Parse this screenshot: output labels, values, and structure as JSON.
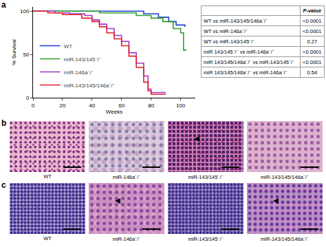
{
  "chart_data": {
    "type": "line",
    "label": "a",
    "xlabel": "Weeks",
    "ylabel": "% Survival",
    "xlim": [
      0,
      110
    ],
    "xticks": [
      0,
      20,
      40,
      60,
      80,
      100
    ],
    "ylim": [
      0,
      105
    ],
    "yticks": [
      0,
      50,
      100
    ],
    "legend": "bottom left",
    "line_style": "step",
    "grid": false,
    "series": [
      {
        "name": "WT",
        "color": "#1c3fd0",
        "x": [
          0,
          75,
          85,
          92,
          97,
          103
        ],
        "values": [
          100,
          97,
          93,
          88,
          84,
          82
        ]
      },
      {
        "name": "miR-143/145⁻/⁻",
        "color": "#2ea02c",
        "x": [
          0,
          45,
          70,
          80,
          88,
          95,
          100,
          102,
          104
        ],
        "values": [
          100,
          98,
          95,
          92,
          88,
          80,
          75,
          55,
          55
        ]
      },
      {
        "name": "miR-146a⁻/⁻",
        "color": "#a233c9",
        "x": [
          0,
          15,
          25,
          35,
          40,
          45,
          50,
          55,
          60,
          65,
          70,
          75,
          78,
          80,
          90
        ],
        "values": [
          100,
          98,
          97,
          95,
          90,
          85,
          80,
          72,
          65,
          52,
          40,
          25,
          10,
          6,
          6
        ]
      },
      {
        "name": "miR-143/145/146a⁻/⁻",
        "color": "#e0202a",
        "x": [
          0,
          10,
          20,
          33,
          40,
          45,
          50,
          55,
          60,
          65,
          70,
          75,
          78,
          80,
          90
        ],
        "values": [
          100,
          98,
          96,
          92,
          88,
          82,
          75,
          68,
          60,
          48,
          35,
          18,
          8,
          4,
          4
        ]
      }
    ]
  },
  "table": {
    "header": [
      "",
      "P-value"
    ],
    "rows": [
      [
        "WT vs miR-143/145/146a⁻/⁻",
        "<0.0001"
      ],
      [
        "WT vs miR-146a⁻/⁻",
        "<0.0001"
      ],
      [
        "WT vs miR-143/145⁻/⁻",
        "0.27"
      ],
      [
        "miR 143/145⁻/⁻ vs miR-146a⁻/⁻",
        "<0.0001"
      ],
      [
        "miR 143/145/146a⁻/⁻ vs miR-143/145⁻/⁻",
        "<0.0001"
      ],
      [
        "miR 143/145/146a⁻/⁻ vs miR-146a⁻/⁻",
        "0.54"
      ]
    ]
  },
  "panels": [
    {
      "label": "b",
      "captions": [
        "WT",
        "miR-146a⁻/⁻",
        "miR-143/145⁻/⁻",
        "miR-143/145/146a⁻/⁻"
      ]
    },
    {
      "label": "c",
      "captions": [
        "WT",
        "miR-146a⁻/⁻",
        "miR-143/145⁻/⁻",
        "miR-143/145/146a⁻/⁻"
      ]
    }
  ]
}
